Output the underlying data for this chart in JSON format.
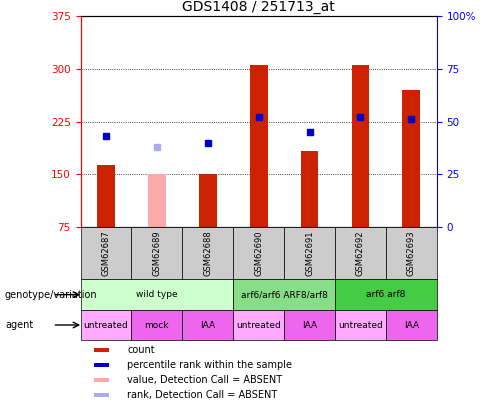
{
  "title": "GDS1408 / 251713_at",
  "samples": [
    "GSM62687",
    "GSM62689",
    "GSM62688",
    "GSM62690",
    "GSM62691",
    "GSM62692",
    "GSM62693"
  ],
  "bar_values": [
    163,
    150,
    150,
    305,
    183,
    305,
    270
  ],
  "bar_colors": [
    "#cc2200",
    "#ffaaaa",
    "#cc2200",
    "#cc2200",
    "#cc2200",
    "#cc2200",
    "#cc2200"
  ],
  "rank_values": [
    43,
    38,
    40,
    52,
    45,
    52,
    51
  ],
  "rank_absent": [
    false,
    true,
    false,
    false,
    false,
    false,
    false
  ],
  "ylim_left": [
    75,
    375
  ],
  "ylim_right": [
    0,
    100
  ],
  "yticks_left": [
    75,
    150,
    225,
    300,
    375
  ],
  "yticks_right": [
    0,
    25,
    50,
    75,
    100
  ],
  "bar_bottom": 75,
  "bar_width": 0.35,
  "genotype_groups": [
    {
      "label": "wild type",
      "start": 0,
      "end": 3,
      "color": "#ccffcc"
    },
    {
      "label": "arf6/arf6 ARF8/arf8",
      "start": 3,
      "end": 5,
      "color": "#88dd88"
    },
    {
      "label": "arf6 arf8",
      "start": 5,
      "end": 7,
      "color": "#44cc44"
    }
  ],
  "agent_groups": [
    {
      "label": "untreated",
      "start": 0,
      "end": 1,
      "color": "#ffaaff"
    },
    {
      "label": "mock",
      "start": 1,
      "end": 2,
      "color": "#ee66ee"
    },
    {
      "label": "IAA",
      "start": 2,
      "end": 3,
      "color": "#ee66ee"
    },
    {
      "label": "untreated",
      "start": 3,
      "end": 4,
      "color": "#ffaaff"
    },
    {
      "label": "IAA",
      "start": 4,
      "end": 5,
      "color": "#ee66ee"
    },
    {
      "label": "untreated",
      "start": 5,
      "end": 6,
      "color": "#ffaaff"
    },
    {
      "label": "IAA",
      "start": 6,
      "end": 7,
      "color": "#ee66ee"
    }
  ],
  "legend_colors": [
    "#cc2200",
    "#0000cc",
    "#ffaaaa",
    "#aaaaee"
  ],
  "legend_labels": [
    "count",
    "percentile rank within the sample",
    "value, Detection Call = ABSENT",
    "rank, Detection Call = ABSENT"
  ],
  "left_label": "genotype/variation",
  "agent_label": "agent",
  "title_fontsize": 10,
  "tick_fontsize": 7.5,
  "label_fontsize": 7,
  "cell_fontsize": 6.5,
  "legend_fontsize": 7,
  "sample_fontsize": 6
}
